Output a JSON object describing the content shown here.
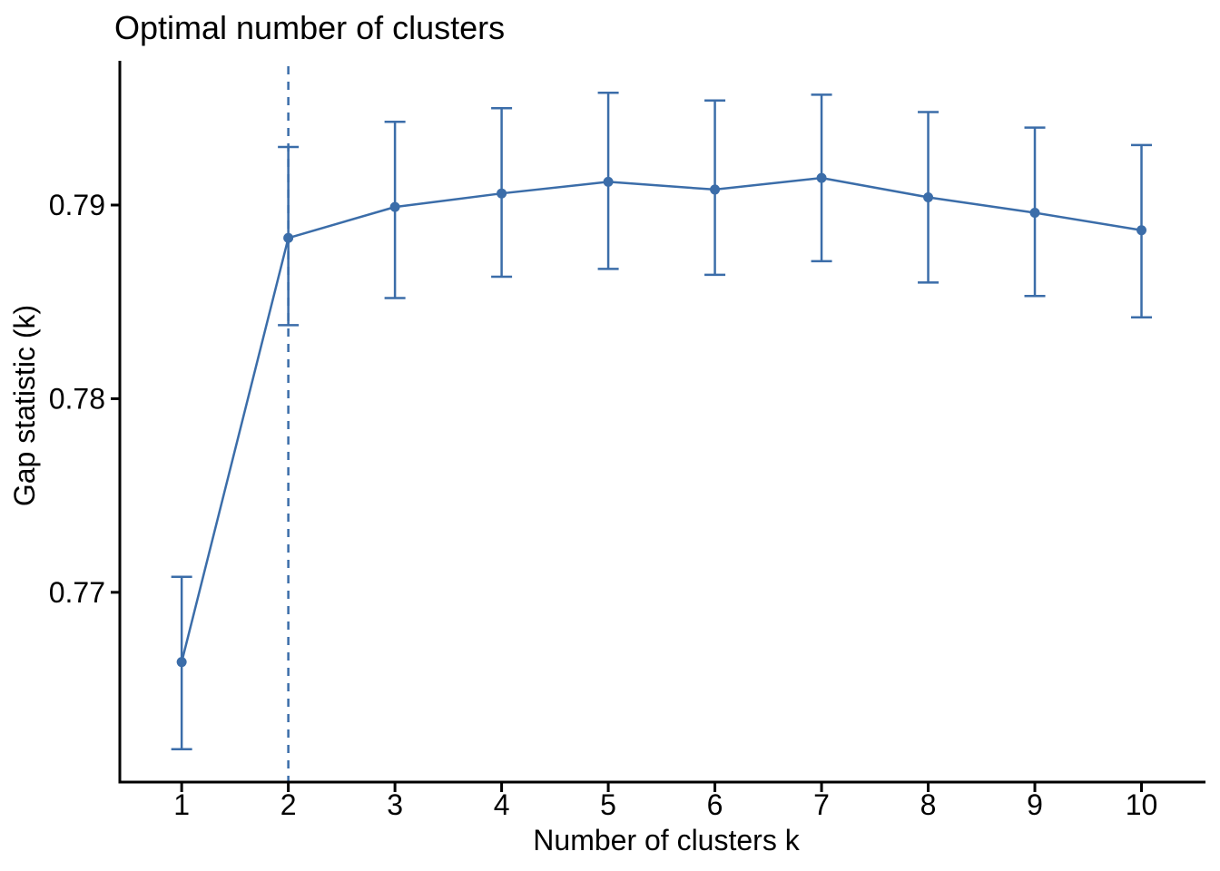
{
  "chart_data": {
    "type": "line",
    "title": "Optimal number of clusters",
    "xlabel": "Number of clusters k",
    "ylabel": "Gap statistic (k)",
    "x": [
      1,
      2,
      3,
      4,
      5,
      6,
      7,
      8,
      9,
      10
    ],
    "series": [
      {
        "name": "Gap statistic",
        "values": [
          0.7664,
          0.7883,
          0.7899,
          0.7906,
          0.7912,
          0.7908,
          0.7914,
          0.7904,
          0.7896,
          0.7887
        ],
        "error_low": [
          0.7619,
          0.7838,
          0.7852,
          0.7863,
          0.7867,
          0.7864,
          0.7871,
          0.786,
          0.7853,
          0.7842
        ],
        "error_high": [
          0.7708,
          0.793,
          0.7943,
          0.795,
          0.7958,
          0.7954,
          0.7957,
          0.7948,
          0.794,
          0.7931
        ]
      }
    ],
    "annotations": [
      {
        "type": "vline",
        "x": 2,
        "style": "dashed"
      }
    ],
    "xticks": [
      1,
      2,
      3,
      4,
      5,
      6,
      7,
      8,
      9,
      10
    ],
    "xtick_labels": [
      "1",
      "2",
      "3",
      "4",
      "5",
      "6",
      "7",
      "8",
      "9",
      "10"
    ],
    "yticks": [
      0.77,
      0.78,
      0.79
    ],
    "ytick_labels": [
      "0.77",
      "0.78",
      "0.79"
    ],
    "xlim": [
      0.42,
      10.6
    ],
    "ylim": [
      0.7602,
      0.79745
    ],
    "grid": false,
    "legend_position": "none",
    "colors": {
      "line": "#3b6da9",
      "axis": "#000000",
      "text": "#000000",
      "background": "#ffffff"
    }
  }
}
